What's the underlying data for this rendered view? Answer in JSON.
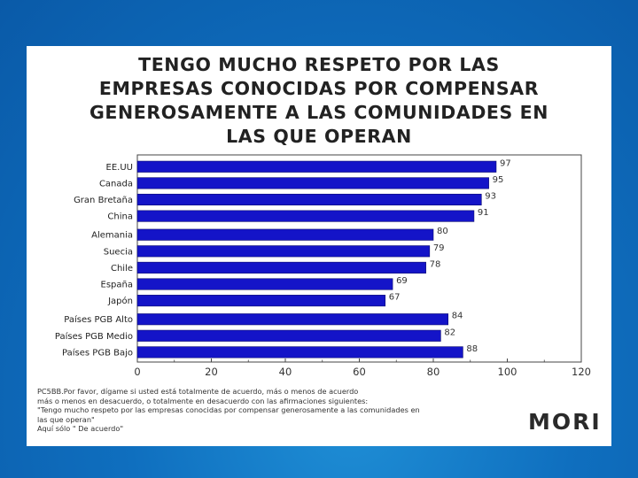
{
  "slide": {
    "title_lines": [
      "TENGO MUCHO RESPETO POR LAS",
      "EMPRESAS CONOCIDAS POR COMPENSAR",
      "GENEROSAMENTE A LAS COMUNIDADES EN",
      "LAS QUE OPERAN"
    ],
    "footnote_lines": [
      "PC5BB.Por favor, dígame si usted está totalmente de acuerdo, más o menos de acuerdo",
      "más o menos en desacuerdo, o totalmente en desacuerdo con las afirmaciones siguientes:",
      "\"Tengo mucho respeto por las empresas conocidas por compensar generosamente a las comunidades en",
      "las que operan\"",
      "Aquí sólo \" De acuerdo\""
    ],
    "brand": "MORI"
  },
  "chart_data": {
    "type": "bar",
    "orientation": "horizontal",
    "categories": [
      "EE.UU",
      "Canada",
      "Gran Bretaña",
      "China",
      "Alemania",
      "Suecia",
      "Chile",
      "España",
      "Japón",
      "Países PGB Alto",
      "Países PGB Medio",
      "Países PGB Bajo"
    ],
    "values": [
      97,
      95,
      93,
      91,
      80,
      79,
      78,
      69,
      67,
      84,
      82,
      88
    ],
    "xlim": [
      0,
      120
    ],
    "xticks": [
      0,
      20,
      40,
      60,
      80,
      100,
      120
    ],
    "group_gaps_after": [
      3,
      8
    ],
    "bar_color": "#1414c8",
    "grid": false,
    "legend": "none"
  }
}
